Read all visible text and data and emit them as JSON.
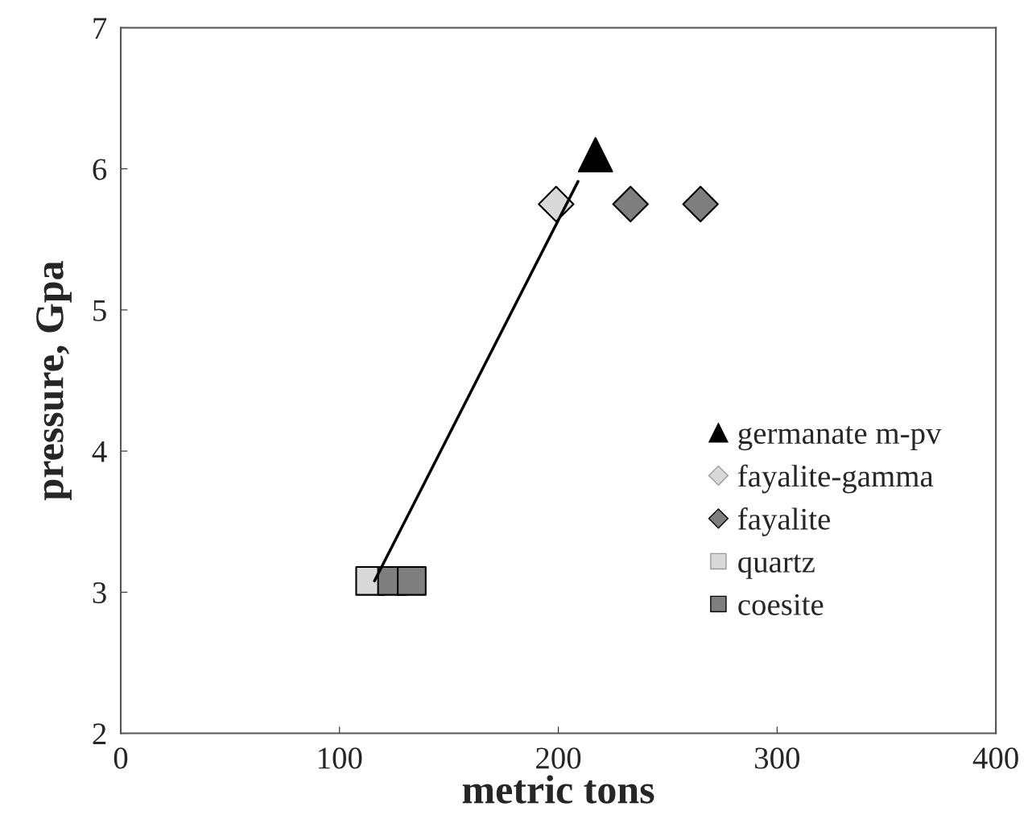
{
  "chart_data": {
    "type": "scatter",
    "xlabel": "metric tons",
    "ylabel": "pressure, Gpa",
    "xlim": [
      0,
      400
    ],
    "xticks": [
      0,
      100,
      200,
      300,
      400
    ],
    "ylim": [
      2,
      7
    ],
    "yticks": [
      2,
      3,
      4,
      5,
      6,
      7
    ],
    "grid": false,
    "legend": "right",
    "series": [
      {
        "type": "line",
        "color": "#000000",
        "x": [
          116,
          209
        ],
        "values": [
          3.08,
          5.91
        ],
        "marker": "none",
        "line_style": "solid"
      },
      {
        "name": "germanate m-pv",
        "color": "#000000",
        "marker": "triangle",
        "x": [
          217
        ],
        "values": [
          6.1
        ]
      },
      {
        "name": "fayalite-gamma",
        "color": "#d9d9d9",
        "marker": "diamond",
        "x": [
          199
        ],
        "values": [
          5.75
        ]
      },
      {
        "name": "fayalite",
        "color": "#7f7f7f",
        "marker": "diamond",
        "x": [
          233,
          265
        ],
        "values": [
          5.75,
          5.75
        ]
      },
      {
        "name": "quartz",
        "color": "#d9d9d9",
        "marker": "square",
        "x": [
          114
        ],
        "values": [
          3.08
        ]
      },
      {
        "name": "coesite",
        "color": "#7f7f7f",
        "marker": "square",
        "x": [
          124,
          133
        ],
        "values": [
          3.08,
          3.08
        ]
      }
    ]
  }
}
